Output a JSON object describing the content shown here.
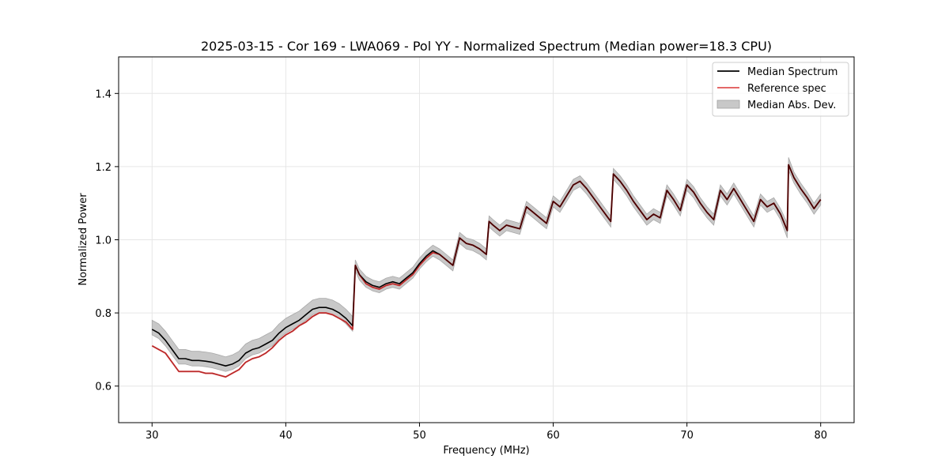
{
  "chart_data": {
    "type": "line",
    "title": "2025-03-15 - Cor 169 - LWA069 - Pol YY - Normalized Spectrum (Median power=18.3 CPU)",
    "xlabel": "Frequency (MHz)",
    "ylabel": "Normalized Power",
    "xlim": [
      27.5,
      82.5
    ],
    "ylim": [
      0.5,
      1.5
    ],
    "xticks": [
      30,
      40,
      50,
      60,
      70,
      80
    ],
    "yticks": [
      0.6,
      0.8,
      1.0,
      1.2,
      1.4
    ],
    "xtick_labels": [
      "30",
      "40",
      "50",
      "60",
      "70",
      "80"
    ],
    "ytick_labels": [
      "0.6",
      "0.8",
      "1.0",
      "1.2",
      "1.4"
    ],
    "grid": true,
    "legend_position": "top-right",
    "colors": {
      "median": "#000000",
      "reference": "#e05252",
      "mad": "#c8c8c8"
    },
    "x": [
      30.0,
      30.5,
      31.0,
      31.5,
      32.0,
      32.5,
      33.0,
      33.5,
      34.0,
      34.5,
      35.0,
      35.5,
      36.0,
      36.5,
      37.0,
      37.5,
      38.0,
      38.5,
      39.0,
      39.5,
      40.0,
      40.5,
      41.0,
      41.5,
      42.0,
      42.5,
      43.0,
      43.5,
      44.0,
      44.5,
      45.0,
      45.2,
      45.5,
      46.0,
      46.5,
      47.0,
      47.5,
      48.0,
      48.5,
      49.0,
      49.5,
      50.0,
      50.5,
      51.0,
      51.5,
      52.0,
      52.5,
      53.0,
      53.5,
      54.0,
      54.5,
      55.0,
      55.2,
      55.5,
      56.0,
      56.5,
      57.0,
      57.5,
      58.0,
      58.5,
      59.0,
      59.5,
      60.0,
      60.5,
      61.0,
      61.5,
      62.0,
      62.5,
      63.0,
      63.5,
      64.0,
      64.3,
      64.5,
      65.0,
      65.5,
      66.0,
      66.5,
      67.0,
      67.5,
      68.0,
      68.5,
      69.0,
      69.5,
      70.0,
      70.5,
      71.0,
      71.5,
      72.0,
      72.5,
      73.0,
      73.5,
      74.0,
      74.5,
      75.0,
      75.5,
      76.0,
      76.5,
      77.0,
      77.5,
      77.6,
      78.0,
      78.5,
      79.0,
      79.5,
      80.0
    ],
    "series": [
      {
        "name": "Median Spectrum",
        "values": [
          0.755,
          0.745,
          0.725,
          0.7,
          0.675,
          0.675,
          0.67,
          0.67,
          0.668,
          0.665,
          0.66,
          0.655,
          0.66,
          0.67,
          0.69,
          0.7,
          0.705,
          0.715,
          0.725,
          0.745,
          0.76,
          0.77,
          0.78,
          0.795,
          0.81,
          0.815,
          0.815,
          0.81,
          0.8,
          0.785,
          0.765,
          0.93,
          0.905,
          0.885,
          0.875,
          0.87,
          0.88,
          0.885,
          0.88,
          0.895,
          0.91,
          0.935,
          0.955,
          0.97,
          0.96,
          0.945,
          0.93,
          1.005,
          0.99,
          0.985,
          0.975,
          0.96,
          1.05,
          1.04,
          1.025,
          1.04,
          1.035,
          1.03,
          1.09,
          1.075,
          1.06,
          1.045,
          1.105,
          1.09,
          1.12,
          1.15,
          1.16,
          1.14,
          1.115,
          1.09,
          1.065,
          1.05,
          1.18,
          1.16,
          1.135,
          1.105,
          1.08,
          1.055,
          1.07,
          1.06,
          1.135,
          1.11,
          1.08,
          1.15,
          1.13,
          1.1,
          1.075,
          1.055,
          1.135,
          1.11,
          1.14,
          1.11,
          1.08,
          1.05,
          1.11,
          1.09,
          1.1,
          1.07,
          1.025,
          1.205,
          1.17,
          1.14,
          1.115,
          1.085,
          1.11
        ]
      },
      {
        "name": "Reference spec",
        "values": [
          0.71,
          0.7,
          0.69,
          0.665,
          0.64,
          0.64,
          0.64,
          0.64,
          0.635,
          0.635,
          0.63,
          0.625,
          0.635,
          0.645,
          0.665,
          0.675,
          0.68,
          0.69,
          0.705,
          0.725,
          0.74,
          0.75,
          0.765,
          0.775,
          0.79,
          0.8,
          0.8,
          0.795,
          0.785,
          0.775,
          0.755,
          0.93,
          0.905,
          0.88,
          0.87,
          0.865,
          0.875,
          0.88,
          0.875,
          0.89,
          0.905,
          0.93,
          0.95,
          0.965,
          0.96,
          0.945,
          0.93,
          1.005,
          0.99,
          0.985,
          0.975,
          0.96,
          1.05,
          1.04,
          1.025,
          1.04,
          1.035,
          1.03,
          1.09,
          1.075,
          1.06,
          1.045,
          1.105,
          1.09,
          1.12,
          1.15,
          1.16,
          1.14,
          1.115,
          1.09,
          1.065,
          1.05,
          1.18,
          1.16,
          1.135,
          1.105,
          1.08,
          1.055,
          1.07,
          1.06,
          1.135,
          1.11,
          1.08,
          1.15,
          1.13,
          1.1,
          1.075,
          1.055,
          1.135,
          1.11,
          1.14,
          1.11,
          1.08,
          1.05,
          1.11,
          1.09,
          1.1,
          1.07,
          1.025,
          1.205,
          1.17,
          1.14,
          1.115,
          1.085,
          1.11
        ]
      },
      {
        "name": "Median Abs. Dev.",
        "lower": [
          0.74,
          0.73,
          0.71,
          0.685,
          0.66,
          0.66,
          0.655,
          0.655,
          0.653,
          0.65,
          0.645,
          0.64,
          0.645,
          0.655,
          0.675,
          0.685,
          0.69,
          0.7,
          0.71,
          0.73,
          0.745,
          0.755,
          0.765,
          0.78,
          0.795,
          0.8,
          0.8,
          0.795,
          0.785,
          0.77,
          0.75,
          0.915,
          0.89,
          0.87,
          0.86,
          0.855,
          0.865,
          0.87,
          0.865,
          0.88,
          0.895,
          0.92,
          0.94,
          0.955,
          0.945,
          0.93,
          0.915,
          0.99,
          0.975,
          0.97,
          0.96,
          0.945,
          1.035,
          1.025,
          1.01,
          1.025,
          1.02,
          1.015,
          1.075,
          1.06,
          1.045,
          1.03,
          1.09,
          1.075,
          1.105,
          1.135,
          1.145,
          1.125,
          1.1,
          1.075,
          1.05,
          1.035,
          1.165,
          1.145,
          1.12,
          1.09,
          1.065,
          1.04,
          1.055,
          1.045,
          1.12,
          1.095,
          1.065,
          1.135,
          1.115,
          1.085,
          1.06,
          1.04,
          1.12,
          1.095,
          1.125,
          1.095,
          1.065,
          1.035,
          1.095,
          1.075,
          1.085,
          1.055,
          1.005,
          1.19,
          1.155,
          1.125,
          1.1,
          1.07,
          1.095
        ],
        "upper": [
          0.78,
          0.77,
          0.75,
          0.725,
          0.7,
          0.7,
          0.695,
          0.695,
          0.693,
          0.69,
          0.685,
          0.68,
          0.685,
          0.695,
          0.715,
          0.725,
          0.73,
          0.74,
          0.75,
          0.77,
          0.785,
          0.795,
          0.805,
          0.82,
          0.835,
          0.84,
          0.84,
          0.835,
          0.825,
          0.81,
          0.79,
          0.945,
          0.92,
          0.9,
          0.89,
          0.885,
          0.895,
          0.9,
          0.895,
          0.91,
          0.925,
          0.95,
          0.97,
          0.985,
          0.975,
          0.96,
          0.945,
          1.02,
          1.005,
          1.0,
          0.99,
          0.975,
          1.065,
          1.055,
          1.04,
          1.055,
          1.05,
          1.045,
          1.105,
          1.09,
          1.075,
          1.06,
          1.12,
          1.105,
          1.135,
          1.165,
          1.175,
          1.155,
          1.13,
          1.105,
          1.08,
          1.065,
          1.195,
          1.175,
          1.15,
          1.12,
          1.095,
          1.07,
          1.085,
          1.075,
          1.15,
          1.125,
          1.095,
          1.165,
          1.145,
          1.115,
          1.09,
          1.07,
          1.15,
          1.125,
          1.155,
          1.125,
          1.095,
          1.065,
          1.125,
          1.105,
          1.115,
          1.085,
          1.045,
          1.225,
          1.185,
          1.155,
          1.13,
          1.1,
          1.125
        ]
      }
    ]
  }
}
